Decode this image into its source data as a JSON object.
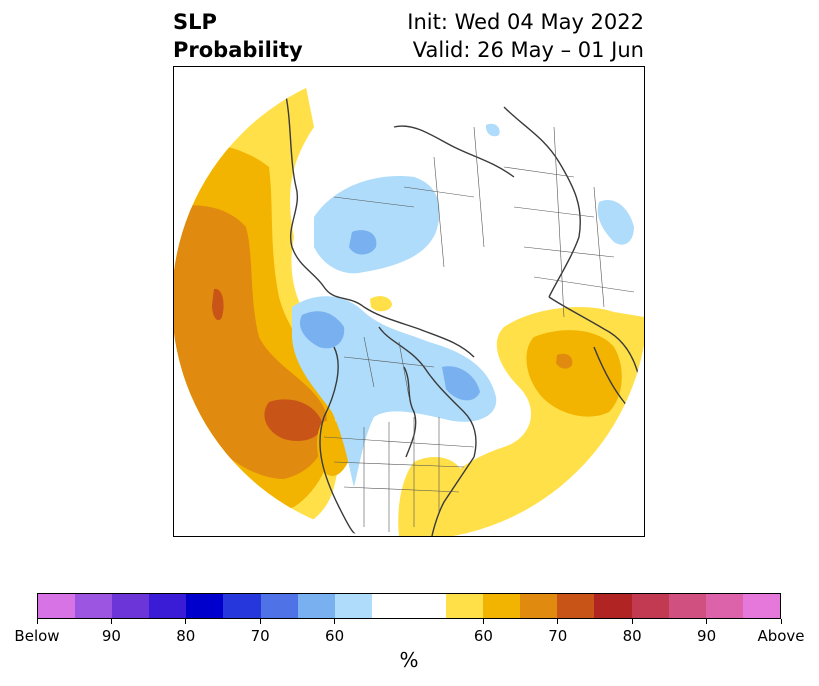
{
  "header": {
    "title_line1": "SLP",
    "title_line2": "Probability",
    "init_text": "Init: Wed 04 May 2022",
    "valid_text": "Valid: 26 May – 01 Jun"
  },
  "map": {
    "projection": "polar-stereographic-north",
    "coastline_color": "#3a3a3a",
    "border_color": "#555555"
  },
  "colorbar": {
    "unit": "%",
    "segments": [
      {
        "range": "below-95+",
        "color": "#d873e6"
      },
      {
        "range": "below-90",
        "color": "#9c55e0"
      },
      {
        "range": "below-85",
        "color": "#6b35d8"
      },
      {
        "range": "below-80",
        "color": "#3a1cd6"
      },
      {
        "range": "below-75",
        "color": "#0000cc"
      },
      {
        "range": "below-70",
        "color": "#2638dc"
      },
      {
        "range": "below-65",
        "color": "#4f72e6"
      },
      {
        "range": "below-60",
        "color": "#78b0f0"
      },
      {
        "range": "below-55",
        "color": "#aedcfa"
      },
      {
        "range": "near-normal",
        "color": "#ffffff"
      },
      {
        "range": "near-normal",
        "color": "#ffffff"
      },
      {
        "range": "above-55",
        "color": "#ffe048"
      },
      {
        "range": "above-60",
        "color": "#f2b400"
      },
      {
        "range": "above-65",
        "color": "#e08a10"
      },
      {
        "range": "above-70",
        "color": "#c85418"
      },
      {
        "range": "above-75",
        "color": "#b02424"
      },
      {
        "range": "above-80",
        "color": "#c23a52"
      },
      {
        "range": "above-85",
        "color": "#d05080"
      },
      {
        "range": "above-90",
        "color": "#dc62aa"
      },
      {
        "range": "above-95+",
        "color": "#e678dc"
      }
    ],
    "labels": [
      "Below",
      "90",
      "80",
      "70",
      "60",
      "60",
      "70",
      "80",
      "90",
      "Above"
    ]
  },
  "legend_colors": {
    "above_55": "#ffe048",
    "above_60": "#f2b400",
    "above_65": "#e08a10",
    "above_70": "#c85418",
    "below_55": "#aedcfa",
    "below_60": "#78b0f0"
  }
}
